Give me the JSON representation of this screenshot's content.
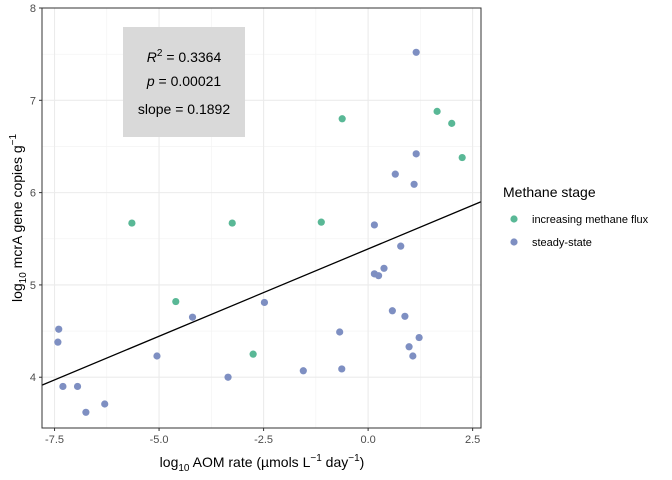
{
  "chart_data": {
    "type": "scatter",
    "xlabel": {
      "pre": "log",
      "sub": "10",
      "mid": " AOM rate (µmols L",
      "sup1": "−1",
      "mid2": " day",
      "sup2": "−1",
      "post": ")"
    },
    "ylabel": {
      "pre": "log",
      "sub": "10",
      "mid": " mcrA gene copies g",
      "sup": "−1"
    },
    "xlim": [
      -7.8,
      2.7
    ],
    "ylim": [
      3.45,
      8.0
    ],
    "x_ticks": [
      -7.5,
      -5.0,
      -2.5,
      0.0,
      2.5
    ],
    "x_tick_labels": [
      "-7.5",
      "-5.0",
      "-2.5",
      "0.0",
      "2.5"
    ],
    "y_ticks": [
      4,
      5,
      6,
      7,
      8
    ],
    "y_tick_labels": [
      "4",
      "5",
      "6",
      "7",
      "8"
    ],
    "grid": true,
    "legend": {
      "title": "Methane stage",
      "placement": "right",
      "entries": [
        {
          "label": "increasing methane flux",
          "color": "#59b896"
        },
        {
          "label": "steady-state",
          "color": "#7e8fc2"
        }
      ]
    },
    "annotation": {
      "r2_label": "R",
      "r2_sup": "2",
      "r2_value": " = 0.3364",
      "p_label": "p",
      "p_value": " = 0.00021",
      "slope_text": "slope = 0.1892"
    },
    "regression": {
      "slope": 0.1892,
      "intercept": 5.39
    },
    "series": [
      {
        "name": "increasing methane flux",
        "color": "#59b896",
        "points": [
          [
            -5.65,
            5.67
          ],
          [
            -3.25,
            5.67
          ],
          [
            -1.12,
            5.68
          ],
          [
            -0.62,
            6.8
          ],
          [
            -4.6,
            4.82
          ],
          [
            -2.75,
            4.25
          ],
          [
            1.65,
            6.88
          ],
          [
            2.0,
            6.75
          ],
          [
            2.25,
            6.38
          ]
        ]
      },
      {
        "name": "steady-state",
        "color": "#7e8fc2",
        "points": [
          [
            -7.4,
            4.52
          ],
          [
            -7.42,
            4.38
          ],
          [
            -7.3,
            3.9
          ],
          [
            -6.95,
            3.9
          ],
          [
            -6.75,
            3.62
          ],
          [
            -6.3,
            3.71
          ],
          [
            -5.05,
            4.23
          ],
          [
            -4.2,
            4.65
          ],
          [
            -3.35,
            4.0
          ],
          [
            -2.48,
            4.81
          ],
          [
            -1.55,
            4.07
          ],
          [
            -0.68,
            4.49
          ],
          [
            -0.63,
            4.09
          ],
          [
            0.15,
            5.65
          ],
          [
            0.15,
            5.12
          ],
          [
            0.25,
            5.1
          ],
          [
            0.38,
            5.18
          ],
          [
            0.58,
            4.72
          ],
          [
            0.65,
            6.2
          ],
          [
            0.78,
            5.42
          ],
          [
            0.88,
            4.66
          ],
          [
            0.98,
            4.33
          ],
          [
            1.07,
            4.23
          ],
          [
            1.1,
            6.09
          ],
          [
            1.15,
            6.42
          ],
          [
            1.15,
            7.52
          ],
          [
            1.22,
            4.43
          ]
        ]
      }
    ]
  }
}
